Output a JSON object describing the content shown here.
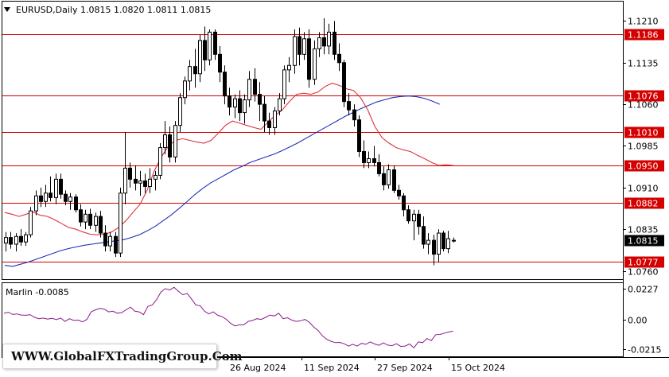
{
  "header": {
    "symbol_line": "EURUSD,Daily  1.0815  1.0820  1.0811  1.0815",
    "collapse_icon": "triangle-down-icon"
  },
  "colors": {
    "bull": "#ffffff",
    "bear": "#000000",
    "level_line": "#d40000",
    "red_ma": "#e0303a",
    "blue_ma": "#1f2fb8",
    "oscillator": "#8a1a8a",
    "current_price_tag": "#000000"
  },
  "price_axis": {
    "ticks": [
      "1.1210",
      "1.1135",
      "1.1060",
      "1.0985",
      "1.0910",
      "1.0835",
      "1.0760"
    ],
    "ylim": [
      1.0745,
      1.1245
    ]
  },
  "levels": [
    "1.1186",
    "1.1076",
    "1.1010",
    "1.0950",
    "1.0882",
    "1.0777"
  ],
  "current_price": "1.0815",
  "indicator": {
    "label": "Marlin -0.0085",
    "ticks": [
      "0.0227",
      "0.00",
      "-0.0215"
    ],
    "ylim": [
      -0.027,
      0.0265
    ]
  },
  "time_axis": {
    "labels": [
      "26 Aug 2024",
      "11 Sep 2024",
      "27 Sep 2024",
      "15 Oct 2024"
    ]
  },
  "watermark": "WWW.GlobalFXTradingGroup.Com",
  "chart_data": {
    "type": "candlestick",
    "title": "EURUSD,Daily",
    "ohlc_last": {
      "open": 1.0815,
      "high": 1.082,
      "low": 1.0811,
      "close": 1.0815
    },
    "levels": [
      1.1186,
      1.1076,
      1.101,
      1.095,
      1.0882,
      1.0777
    ],
    "candles": [
      [
        1.081,
        1.083,
        1.0795,
        1.082
      ],
      [
        1.082,
        1.083,
        1.08,
        1.0808
      ],
      [
        1.0808,
        1.0828,
        1.0795,
        1.0822
      ],
      [
        1.0822,
        1.0835,
        1.0805,
        1.0812
      ],
      [
        1.0812,
        1.083,
        1.0805,
        1.0825
      ],
      [
        1.0825,
        1.0875,
        1.082,
        1.0868
      ],
      [
        1.0868,
        1.0905,
        1.086,
        1.0895
      ],
      [
        1.0895,
        1.091,
        1.0875,
        1.0885
      ],
      [
        1.0885,
        1.0915,
        1.0875,
        1.09
      ],
      [
        1.09,
        1.093,
        1.0885,
        1.0892
      ],
      [
        1.0892,
        1.0935,
        1.088,
        1.0925
      ],
      [
        1.0925,
        1.0935,
        1.089,
        1.0898
      ],
      [
        1.0898,
        1.0905,
        1.0878,
        1.0885
      ],
      [
        1.0885,
        1.09,
        1.087,
        1.0893
      ],
      [
        1.0893,
        1.0898,
        1.0865,
        1.087
      ],
      [
        1.087,
        1.088,
        1.084,
        1.0848
      ],
      [
        1.0848,
        1.087,
        1.0835,
        1.0862
      ],
      [
        1.0862,
        1.0872,
        1.0835,
        1.0842
      ],
      [
        1.0842,
        1.0865,
        1.083,
        1.0858
      ],
      [
        1.0858,
        1.0868,
        1.082,
        1.0828
      ],
      [
        1.0828,
        1.0842,
        1.0795,
        1.0805
      ],
      [
        1.0805,
        1.083,
        1.0795,
        1.0822
      ],
      [
        1.0822,
        1.083,
        1.0785,
        1.0792
      ],
      [
        1.0792,
        1.091,
        1.0785,
        1.09
      ],
      [
        1.09,
        1.101,
        1.088,
        1.0945
      ],
      [
        1.0945,
        1.0955,
        1.091,
        1.0925
      ],
      [
        1.0925,
        1.095,
        1.0905,
        1.0918
      ],
      [
        1.0918,
        1.094,
        1.0895,
        1.0922
      ],
      [
        1.0922,
        1.0935,
        1.09,
        1.0912
      ],
      [
        1.0912,
        1.0945,
        1.09,
        1.0925
      ],
      [
        1.0925,
        1.094,
        1.0905,
        1.0932
      ],
      [
        1.0932,
        1.099,
        1.0925,
        1.0982
      ],
      [
        1.0982,
        1.103,
        1.097,
        1.1005
      ],
      [
        1.1005,
        1.102,
        1.0955,
        1.0965
      ],
      [
        1.0965,
        1.103,
        1.0955,
        1.1022
      ],
      [
        1.1022,
        1.108,
        1.101,
        1.1072
      ],
      [
        1.1072,
        1.111,
        1.106,
        1.1102
      ],
      [
        1.1102,
        1.114,
        1.1085,
        1.1128
      ],
      [
        1.1128,
        1.116,
        1.109,
        1.1115
      ],
      [
        1.1115,
        1.1185,
        1.11,
        1.1175
      ],
      [
        1.1175,
        1.12,
        1.112,
        1.114
      ],
      [
        1.114,
        1.1195,
        1.113,
        1.119
      ],
      [
        1.119,
        1.1195,
        1.114,
        1.115
      ],
      [
        1.115,
        1.1165,
        1.11,
        1.1118
      ],
      [
        1.1118,
        1.113,
        1.106,
        1.1075
      ],
      [
        1.1075,
        1.109,
        1.104,
        1.1055
      ],
      [
        1.1055,
        1.1078,
        1.1035,
        1.107
      ],
      [
        1.107,
        1.1085,
        1.103,
        1.1045
      ],
      [
        1.1045,
        1.1078,
        1.1025,
        1.1068
      ],
      [
        1.1068,
        1.112,
        1.1055,
        1.1105
      ],
      [
        1.1105,
        1.1125,
        1.1065,
        1.1078
      ],
      [
        1.1078,
        1.11,
        1.103,
        1.106
      ],
      [
        1.106,
        1.1075,
        1.101,
        1.103
      ],
      [
        1.103,
        1.1045,
        1.1005,
        1.1018
      ],
      [
        1.1018,
        1.1055,
        1.1005,
        1.1048
      ],
      [
        1.1048,
        1.108,
        1.104,
        1.107
      ],
      [
        1.107,
        1.113,
        1.106,
        1.1122
      ],
      [
        1.1122,
        1.1145,
        1.11,
        1.113
      ],
      [
        1.113,
        1.1195,
        1.1115,
        1.1182
      ],
      [
        1.1182,
        1.1198,
        1.113,
        1.115
      ],
      [
        1.115,
        1.119,
        1.114,
        1.1178
      ],
      [
        1.1178,
        1.1195,
        1.109,
        1.1105
      ],
      [
        1.1105,
        1.1175,
        1.1095,
        1.116
      ],
      [
        1.116,
        1.119,
        1.1145,
        1.118
      ],
      [
        1.118,
        1.1215,
        1.115,
        1.1165
      ],
      [
        1.1165,
        1.1205,
        1.115,
        1.119
      ],
      [
        1.119,
        1.121,
        1.114,
        1.115
      ],
      [
        1.115,
        1.117,
        1.112,
        1.1135
      ],
      [
        1.1135,
        1.114,
        1.1055,
        1.1065
      ],
      [
        1.1065,
        1.108,
        1.104,
        1.105
      ],
      [
        1.105,
        1.106,
        1.102,
        1.1032
      ],
      [
        1.1032,
        1.104,
        1.0965,
        1.0975
      ],
      [
        1.0975,
        1.0995,
        1.0945,
        1.0955
      ],
      [
        1.0955,
        1.0975,
        1.0945,
        1.0962
      ],
      [
        1.0962,
        1.0985,
        1.0948,
        1.0955
      ],
      [
        1.0955,
        1.097,
        1.093,
        1.0935
      ],
      [
        1.0935,
        1.0948,
        1.0905,
        1.0915
      ],
      [
        1.0915,
        1.0952,
        1.0908,
        1.0942
      ],
      [
        1.0942,
        1.095,
        1.09,
        1.0905
      ],
      [
        1.0905,
        1.0915,
        1.0888,
        1.0895
      ],
      [
        1.0895,
        1.09,
        1.0858,
        1.087
      ],
      [
        1.087,
        1.0878,
        1.0845,
        1.085
      ],
      [
        1.085,
        1.087,
        1.0815,
        1.0862
      ],
      [
        1.0862,
        1.087,
        1.0825,
        1.084
      ],
      [
        1.084,
        1.0858,
        1.08,
        1.0808
      ],
      [
        1.0808,
        1.0828,
        1.079,
        1.0815
      ],
      [
        1.0815,
        1.0825,
        1.077,
        1.079
      ],
      [
        1.079,
        1.0835,
        1.0775,
        1.0828
      ],
      [
        1.0828,
        1.0832,
        1.0795,
        1.08
      ],
      [
        1.08,
        1.0832,
        1.0792,
        1.0818
      ],
      [
        1.0815,
        1.082,
        1.0811,
        1.0815
      ]
    ],
    "red_ma": [
      1.0865,
      1.0862,
      1.0858,
      1.0862,
      1.0866,
      1.086,
      1.0858,
      1.0852,
      1.0845,
      1.0838,
      1.0835,
      1.083,
      1.0826,
      1.0825,
      1.0826,
      1.083,
      1.0838,
      1.085,
      1.0865,
      1.088,
      1.0905,
      1.094,
      1.0965,
      1.0985,
      1.0995,
      1.0998,
      1.0995,
      1.0992,
      1.099,
      1.0995,
      1.1008,
      1.1022,
      1.103,
      1.1026,
      1.1022,
      1.1018,
      1.1015,
      1.1028,
      1.104,
      1.105,
      1.1065,
      1.1078,
      1.108,
      1.1078,
      1.1082,
      1.1092,
      1.1098,
      1.1094,
      1.1088,
      1.1085,
      1.1072,
      1.105,
      1.102,
      1.1,
      1.099,
      1.0982,
      1.0978,
      1.0975,
      1.0968,
      1.0962,
      1.0955,
      1.095,
      1.0951,
      1.095
    ],
    "blue_ma": [
      1.077,
      1.0768,
      1.0772,
      1.0776,
      1.0781,
      1.0786,
      1.0791,
      1.0796,
      1.08,
      1.0803,
      1.0806,
      1.0808,
      1.081,
      1.0812,
      1.0814,
      1.0816,
      1.082,
      1.0825,
      1.0832,
      1.084,
      1.085,
      1.086,
      1.0872,
      1.0884,
      1.0897,
      1.0908,
      1.0918,
      1.0926,
      1.0934,
      1.0942,
      1.0948,
      1.0955,
      1.096,
      1.0965,
      1.097,
      1.0976,
      1.0983,
      1.099,
      1.0998,
      1.1006,
      1.1014,
      1.1022,
      1.103,
      1.1038,
      1.1045,
      1.1052,
      1.1058,
      1.1064,
      1.1068,
      1.1072,
      1.1074,
      1.1075,
      1.1074,
      1.1071,
      1.1066,
      1.106
    ],
    "marlin": [
      0.0045,
      0.0052,
      0.0036,
      0.004,
      0.0032,
      0.003,
      0.0035,
      0.0015,
      0.0005,
      0.001,
      0.0002,
      0.0008,
      -0.0002,
      0.001,
      -0.0015,
      0.0005,
      -0.0008,
      -0.0005,
      -0.0018,
      0.0,
      0.0055,
      0.007,
      0.008,
      0.0075,
      0.0055,
      0.006,
      0.0045,
      0.005,
      0.007,
      0.009,
      0.006,
      0.0055,
      0.0035,
      0.0095,
      0.0105,
      0.0145,
      0.02,
      0.0225,
      0.0215,
      0.0235,
      0.0205,
      0.018,
      0.019,
      0.015,
      0.0105,
      0.01,
      0.006,
      0.004,
      0.0055,
      0.003,
      0.002,
      0.0,
      -0.003,
      -0.0048,
      -0.004,
      -0.004,
      -0.0015,
      -0.0008,
      0.0005,
      0.0,
      0.0015,
      0.0032,
      0.0025,
      0.0045,
      0.0005,
      0.0012,
      -0.0005,
      -0.0015,
      -0.001,
      0.0,
      -0.002,
      -0.0055,
      -0.008,
      -0.012,
      -0.0145,
      -0.016,
      -0.017,
      -0.0168,
      -0.0178,
      -0.0195,
      -0.0182,
      -0.0195,
      -0.0175,
      -0.0182,
      -0.0165,
      -0.018,
      -0.019,
      -0.0172,
      -0.0188,
      -0.0192,
      -0.0178,
      -0.0198,
      -0.0195,
      -0.018,
      -0.0208,
      -0.0165,
      -0.017,
      -0.014,
      -0.0155,
      -0.0112,
      -0.011,
      -0.01,
      -0.0092,
      -0.0085
    ]
  }
}
